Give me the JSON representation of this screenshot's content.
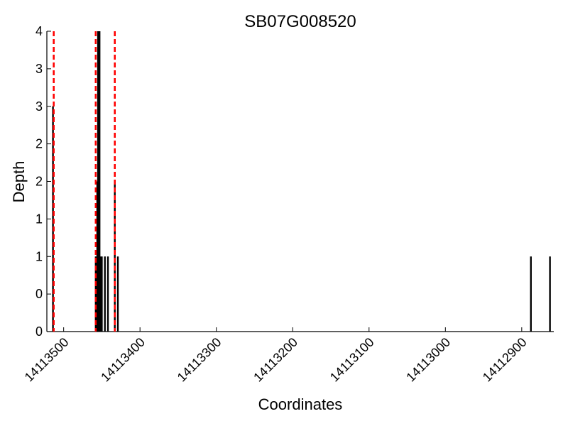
{
  "chart_data": {
    "type": "bar",
    "title": "SB07G008520",
    "xlabel": "Coordinates",
    "ylabel": "Depth",
    "x_axis_reversed": true,
    "xlim": [
      14113522,
      14112858
    ],
    "ylim": [
      0,
      4
    ],
    "grid": false,
    "x_ticks": [
      14113500,
      14113400,
      14113300,
      14113200,
      14113100,
      14113000,
      14112900
    ],
    "x_tick_labels": [
      "14113500",
      "14113400",
      "14113300",
      "14113200",
      "14113100",
      "14113000",
      "14112900"
    ],
    "y_ticks": [
      0,
      0.5,
      1,
      1.5,
      2,
      2.5,
      3,
      3.5,
      4
    ],
    "y_tick_labels": [
      "0",
      "0",
      "1",
      "1",
      "2",
      "2",
      "3",
      "3",
      "4"
    ],
    "series": [
      {
        "color": "#000000",
        "x": [
          14113514,
          14113458,
          14113456,
          14113455,
          14113454,
          14113453,
          14113452,
          14113450,
          14113446,
          14113442,
          14113433,
          14113429
        ],
        "values": [
          3,
          1,
          2,
          4,
          4,
          4,
          1,
          1,
          1,
          1,
          2,
          1
        ]
      },
      {
        "color": "#000000",
        "x": [
          14112888,
          14112863
        ],
        "values": [
          1,
          1
        ]
      }
    ],
    "reference_lines": {
      "color": "#ff0000",
      "style": "dashed",
      "x": [
        14113513,
        14113458,
        14113433
      ]
    }
  }
}
